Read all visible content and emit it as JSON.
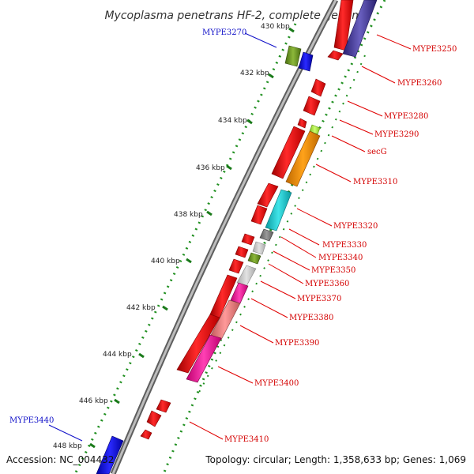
{
  "title": "Mycoplasma penetrans HF-2, complete genome",
  "footer": {
    "accession": "Accession: NC_004432",
    "summary": "Topology: circular; Length: 1,358,633 bp; Genes: 1,069"
  },
  "ticks": [
    "430 kbp",
    "432 kbp",
    "434 kbp",
    "436 kbp",
    "438 kbp",
    "440 kbp",
    "442 kbp",
    "444 kbp",
    "446 kbp",
    "448 kbp"
  ],
  "genes": [
    {
      "name": "MYPE3250",
      "color": "#d40000"
    },
    {
      "name": "MYPE3260",
      "color": "#d40000"
    },
    {
      "name": "MYPE3270",
      "color": "#1010c8"
    },
    {
      "name": "MYPE3280",
      "color": "#d40000"
    },
    {
      "name": "MYPE3290",
      "color": "#d40000"
    },
    {
      "name": "secG",
      "color": "#d40000"
    },
    {
      "name": "MYPE3310",
      "color": "#d40000"
    },
    {
      "name": "MYPE3320",
      "color": "#d40000"
    },
    {
      "name": "MYPE3330",
      "color": "#d40000"
    },
    {
      "name": "MYPE3340",
      "color": "#d40000"
    },
    {
      "name": "MYPE3350",
      "color": "#d40000"
    },
    {
      "name": "MYPE3360",
      "color": "#d40000"
    },
    {
      "name": "MYPE3370",
      "color": "#d40000"
    },
    {
      "name": "MYPE3380",
      "color": "#d40000"
    },
    {
      "name": "MYPE3390",
      "color": "#d40000"
    },
    {
      "name": "MYPE3400",
      "color": "#d40000"
    },
    {
      "name": "MYPE3410",
      "color": "#d40000"
    },
    {
      "name": "MYPE3440",
      "color": "#1010c8"
    }
  ],
  "colors": {
    "backbone": "#8c8c8c",
    "tick_major": "#1a7a1a",
    "tick_minor": "#1f8f1f",
    "cds_red": "#ff0000",
    "cds_blue": "#0000ee",
    "cds_navy": "#4a3fa0",
    "cds_orange": "#ff9400",
    "cds_cyan": "#1ccfd2",
    "cds_gray": "#808080",
    "cds_lightgray": "#c8c8c8",
    "cds_olive": "#6f9a1e",
    "cds_lime": "#aaf040",
    "cds_pink": "#ff1aa0",
    "cds_salmon": "#f08080"
  }
}
